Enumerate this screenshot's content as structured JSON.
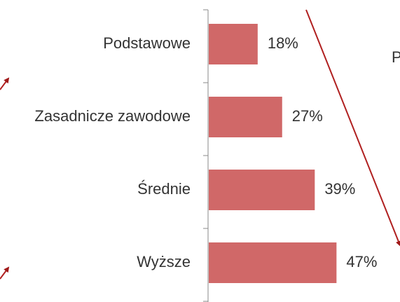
{
  "chart_data": {
    "type": "hbar",
    "categories": [
      "Podstawowe",
      "Zasadnicze zawodowe",
      "Średnie",
      "Wyższe"
    ],
    "values": [
      18,
      27,
      39,
      47
    ],
    "value_labels": [
      "18%",
      "27%",
      "39%",
      "47%"
    ],
    "color": "#d06868",
    "annotation": "P"
  }
}
